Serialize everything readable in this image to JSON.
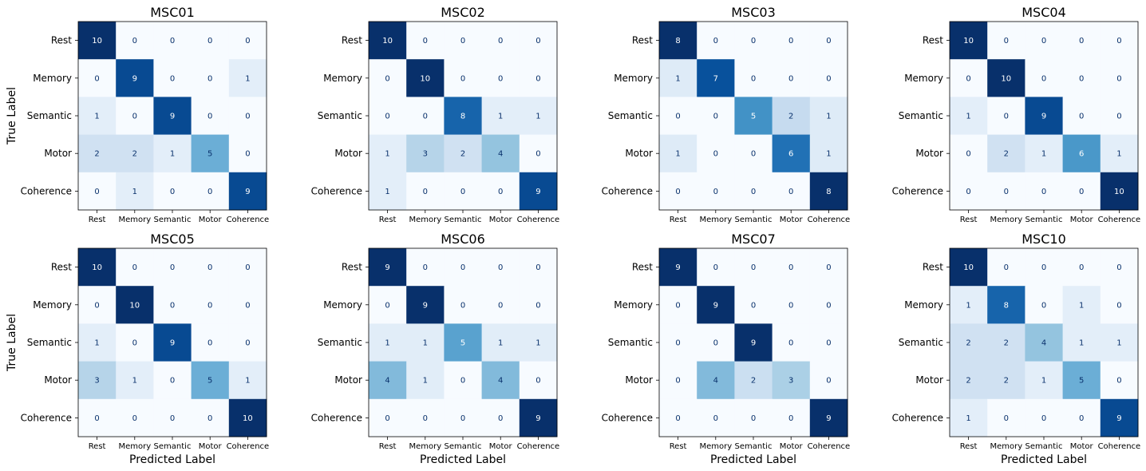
{
  "figure": {
    "ylabel": "True Label",
    "xlabel": "Predicted Label"
  },
  "chart_data": [
    {
      "type": "heatmap",
      "title": "MSC01",
      "x_categories": [
        "Rest",
        "Memory",
        "Semantic",
        "Motor",
        "Coherence"
      ],
      "y_categories": [
        "Rest",
        "Memory",
        "Semantic",
        "Motor",
        "Coherence"
      ],
      "matrix": [
        [
          10,
          0,
          0,
          0,
          0
        ],
        [
          0,
          9,
          0,
          0,
          1
        ],
        [
          1,
          0,
          9,
          0,
          0
        ],
        [
          2,
          2,
          1,
          5,
          0
        ],
        [
          0,
          1,
          0,
          0,
          9
        ]
      ]
    },
    {
      "type": "heatmap",
      "title": "MSC02",
      "x_categories": [
        "Rest",
        "Memory",
        "Semantic",
        "Motor",
        "Coherence"
      ],
      "y_categories": [
        "Rest",
        "Memory",
        "Semantic",
        "Motor",
        "Coherence"
      ],
      "matrix": [
        [
          10,
          0,
          0,
          0,
          0
        ],
        [
          0,
          10,
          0,
          0,
          0
        ],
        [
          0,
          0,
          8,
          1,
          1
        ],
        [
          1,
          3,
          2,
          4,
          0
        ],
        [
          1,
          0,
          0,
          0,
          9
        ]
      ]
    },
    {
      "type": "heatmap",
      "title": "MSC03",
      "x_categories": [
        "Rest",
        "Memory",
        "Semantic",
        "Motor",
        "Coherence"
      ],
      "y_categories": [
        "Rest",
        "Memory",
        "Semantic",
        "Motor",
        "Coherence"
      ],
      "matrix": [
        [
          8,
          0,
          0,
          0,
          0
        ],
        [
          1,
          7,
          0,
          0,
          0
        ],
        [
          0,
          0,
          5,
          2,
          1
        ],
        [
          1,
          0,
          0,
          6,
          1
        ],
        [
          0,
          0,
          0,
          0,
          8
        ]
      ]
    },
    {
      "type": "heatmap",
      "title": "MSC04",
      "x_categories": [
        "Rest",
        "Memory",
        "Semantic",
        "Motor",
        "Coherence"
      ],
      "y_categories": [
        "Rest",
        "Memory",
        "Semantic",
        "Motor",
        "Coherence"
      ],
      "matrix": [
        [
          10,
          0,
          0,
          0,
          0
        ],
        [
          0,
          10,
          0,
          0,
          0
        ],
        [
          1,
          0,
          9,
          0,
          0
        ],
        [
          0,
          2,
          1,
          6,
          1
        ],
        [
          0,
          0,
          0,
          0,
          10
        ]
      ]
    },
    {
      "type": "heatmap",
      "title": "MSC05",
      "x_categories": [
        "Rest",
        "Memory",
        "Semantic",
        "Motor",
        "Coherence"
      ],
      "y_categories": [
        "Rest",
        "Memory",
        "Semantic",
        "Motor",
        "Coherence"
      ],
      "matrix": [
        [
          10,
          0,
          0,
          0,
          0
        ],
        [
          0,
          10,
          0,
          0,
          0
        ],
        [
          1,
          0,
          9,
          0,
          0
        ],
        [
          3,
          1,
          0,
          5,
          1
        ],
        [
          0,
          0,
          0,
          0,
          10
        ]
      ]
    },
    {
      "type": "heatmap",
      "title": "MSC06",
      "x_categories": [
        "Rest",
        "Memory",
        "Semantic",
        "Motor",
        "Coherence"
      ],
      "y_categories": [
        "Rest",
        "Memory",
        "Semantic",
        "Motor",
        "Coherence"
      ],
      "matrix": [
        [
          9,
          0,
          0,
          0,
          0
        ],
        [
          0,
          9,
          0,
          0,
          0
        ],
        [
          1,
          1,
          5,
          1,
          1
        ],
        [
          4,
          1,
          0,
          4,
          0
        ],
        [
          0,
          0,
          0,
          0,
          9
        ]
      ]
    },
    {
      "type": "heatmap",
      "title": "MSC07",
      "x_categories": [
        "Rest",
        "Memory",
        "Semantic",
        "Motor",
        "Coherence"
      ],
      "y_categories": [
        "Rest",
        "Memory",
        "Semantic",
        "Motor",
        "Coherence"
      ],
      "matrix": [
        [
          9,
          0,
          0,
          0,
          0
        ],
        [
          0,
          9,
          0,
          0,
          0
        ],
        [
          0,
          0,
          9,
          0,
          0
        ],
        [
          0,
          4,
          2,
          3,
          0
        ],
        [
          0,
          0,
          0,
          0,
          9
        ]
      ]
    },
    {
      "type": "heatmap",
      "title": "MSC10",
      "x_categories": [
        "Rest",
        "Memory",
        "Semantic",
        "Motor",
        "Coherence"
      ],
      "y_categories": [
        "Rest",
        "Memory",
        "Semantic",
        "Motor",
        "Coherence"
      ],
      "matrix": [
        [
          10,
          0,
          0,
          0,
          0
        ],
        [
          1,
          8,
          0,
          1,
          0
        ],
        [
          2,
          2,
          4,
          1,
          1
        ],
        [
          2,
          2,
          1,
          5,
          0
        ],
        [
          1,
          0,
          0,
          0,
          9
        ]
      ]
    }
  ]
}
